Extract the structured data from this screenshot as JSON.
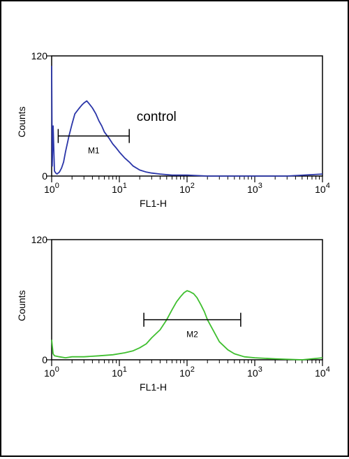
{
  "chart_data": [
    {
      "type": "line",
      "xlabel": "FL1-H",
      "ylabel": "Counts",
      "x_scale": "log",
      "xlim": [
        1,
        10000
      ],
      "ylim": [
        0,
        120
      ],
      "y_ticks": [
        "0",
        "120"
      ],
      "x_ticks": [
        {
          "value": 1,
          "base": "10",
          "exp": "0"
        },
        {
          "value": 10,
          "base": "10",
          "exp": "1"
        },
        {
          "value": 100,
          "base": "10",
          "exp": "2"
        },
        {
          "value": 1000,
          "base": "10",
          "exp": "3"
        },
        {
          "value": 10000,
          "base": "10",
          "exp": "4"
        }
      ],
      "annotation": "control",
      "marker": {
        "label": "M1",
        "x_start": 1.25,
        "x_end": 14,
        "y": 40
      },
      "series": [
        {
          "color": "#2a35a8",
          "x": [
            1.0,
            1.02,
            1.05,
            1.1,
            1.15,
            1.2,
            1.3,
            1.4,
            1.5,
            1.6,
            1.8,
            2.0,
            2.2,
            2.5,
            2.8,
            3.0,
            3.3,
            3.6,
            4.0,
            4.5,
            5.0,
            5.5,
            6.0,
            7.0,
            8.0,
            9.0,
            10,
            12,
            14,
            16,
            20,
            25,
            30,
            40,
            60,
            100,
            200,
            500,
            1000,
            3000,
            10000
          ],
          "y": [
            110,
            10,
            50,
            5,
            3,
            2,
            4,
            8,
            14,
            24,
            40,
            52,
            62,
            67,
            71,
            73,
            75,
            72,
            68,
            62,
            55,
            50,
            44,
            38,
            32,
            28,
            24,
            18,
            14,
            10,
            6,
            4,
            3,
            2,
            1,
            1,
            0,
            0,
            0,
            0,
            2
          ]
        }
      ]
    },
    {
      "type": "line",
      "xlabel": "FL1-H",
      "ylabel": "Counts",
      "x_scale": "log",
      "xlim": [
        1,
        10000
      ],
      "ylim": [
        0,
        120
      ],
      "y_ticks": [
        "0",
        "120"
      ],
      "x_ticks": [
        {
          "value": 1,
          "base": "10",
          "exp": "0"
        },
        {
          "value": 10,
          "base": "10",
          "exp": "1"
        },
        {
          "value": 100,
          "base": "10",
          "exp": "2"
        },
        {
          "value": 1000,
          "base": "10",
          "exp": "3"
        },
        {
          "value": 10000,
          "base": "10",
          "exp": "4"
        }
      ],
      "annotation": "",
      "marker": {
        "label": "M2",
        "x_start": 23,
        "x_end": 620,
        "y": 40
      },
      "series": [
        {
          "color": "#3fbf2f",
          "x": [
            1.0,
            1.05,
            1.1,
            1.3,
            1.6,
            2,
            3,
            5,
            8,
            12,
            16,
            20,
            25,
            30,
            40,
            50,
            60,
            70,
            80,
            90,
            100,
            110,
            125,
            140,
            160,
            180,
            200,
            250,
            300,
            400,
            500,
            700,
            1000,
            2000,
            5000,
            10000
          ],
          "y": [
            20,
            6,
            4,
            3,
            2,
            3,
            3,
            4,
            5,
            7,
            9,
            12,
            16,
            22,
            30,
            40,
            50,
            58,
            63,
            67,
            69,
            68,
            66,
            62,
            55,
            48,
            40,
            28,
            18,
            10,
            6,
            3,
            2,
            1,
            0,
            2
          ]
        }
      ]
    }
  ]
}
